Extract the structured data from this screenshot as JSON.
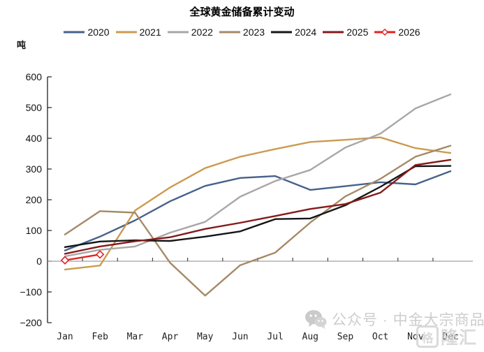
{
  "chart_data": {
    "type": "line",
    "title": "全球黄金储备累计变动",
    "unit_label": "吨",
    "categories": [
      "Jan",
      "Feb",
      "Mar",
      "Apr",
      "May",
      "Jun",
      "Jul",
      "Aug",
      "Sep",
      "Oct",
      "Nov",
      "Dec"
    ],
    "ylim": [
      -200,
      600
    ],
    "ytick_step": 100,
    "y_tick_labels": [
      "600",
      "500",
      "400",
      "300",
      "200",
      "100",
      "0",
      "−100",
      "−200"
    ],
    "grid": "zero-baseline-only",
    "legend_position": "top",
    "series": [
      {
        "name": "2020",
        "color": "#47618a",
        "values": [
          35,
          80,
          133,
          195,
          245,
          271,
          277,
          232,
          244,
          257,
          250,
          293
        ]
      },
      {
        "name": "2021",
        "color": "#cb9b51",
        "values": [
          -27,
          -14,
          165,
          240,
          303,
          340,
          365,
          388,
          395,
          403,
          368,
          352
        ]
      },
      {
        "name": "2022",
        "color": "#a7a7a7",
        "values": [
          16,
          37,
          48,
          93,
          128,
          210,
          261,
          297,
          370,
          415,
          497,
          543
        ]
      },
      {
        "name": "2023",
        "color": "#a58a67",
        "values": [
          87,
          163,
          158,
          -5,
          -112,
          -13,
          28,
          126,
          211,
          268,
          340,
          376
        ]
      },
      {
        "name": "2024",
        "color": "#161616",
        "values": [
          46,
          64,
          68,
          66,
          80,
          97,
          137,
          139,
          182,
          242,
          309,
          310
        ]
      },
      {
        "name": "2025",
        "color": "#871a1a",
        "values": [
          24,
          48,
          65,
          78,
          105,
          125,
          147,
          170,
          186,
          223,
          313,
          330
        ]
      },
      {
        "name": "2026",
        "color": "#e32222",
        "values": [
          3,
          22
        ],
        "marker": "diamond-open"
      }
    ]
  },
  "watermark": {
    "wechat_label": "公众号 · 中金大宗商品",
    "logo_icon_char": "格",
    "logo_text": "隆汇"
  }
}
